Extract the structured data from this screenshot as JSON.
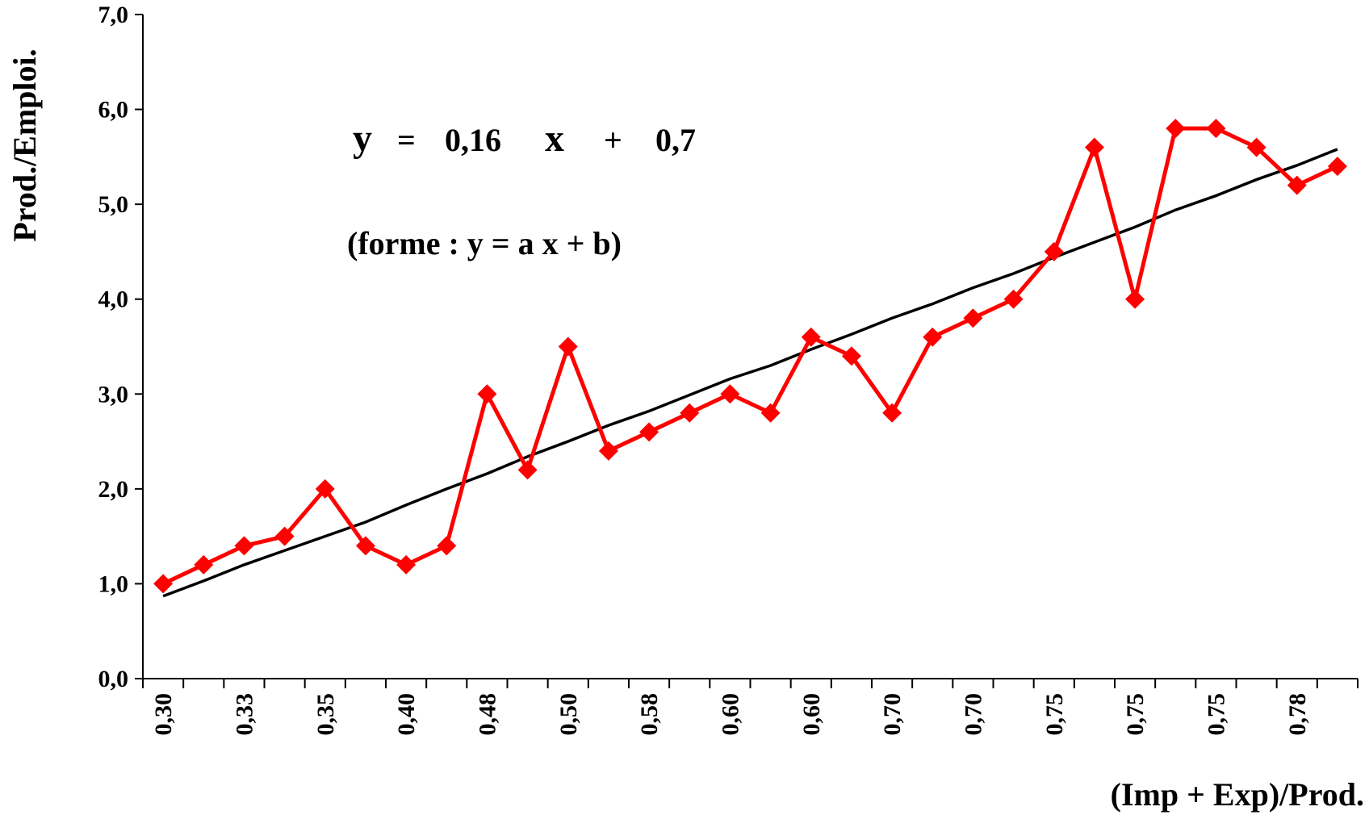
{
  "chart_data": {
    "type": "line",
    "title": "",
    "xlabel": "(Imp + Exp)/Prod.",
    "ylabel": "Prod./Emploi.",
    "ylim": [
      0,
      7
    ],
    "yticks": [
      "0,0",
      "1,0",
      "2,0",
      "3,0",
      "4,0",
      "5,0",
      "6,0",
      "7,0"
    ],
    "grid": false,
    "legend": "none",
    "categories": [
      "0,30",
      "",
      "0,33",
      "",
      "0,35",
      "",
      "0,40",
      "",
      "0,48",
      "",
      "0,50",
      "",
      "0,58",
      "",
      "0,60",
      "",
      "0,60",
      "",
      "0,70",
      "",
      "0,70",
      "",
      "0,75",
      "",
      "0,75",
      "",
      "0,75",
      "",
      "0,78",
      ""
    ],
    "series": [
      {
        "color": "#ff0000",
        "marker": "diamond",
        "values": [
          1.0,
          1.2,
          1.4,
          1.5,
          2.0,
          1.4,
          1.2,
          1.4,
          3.0,
          2.2,
          3.5,
          2.4,
          2.6,
          2.8,
          3.0,
          2.8,
          3.6,
          3.4,
          2.8,
          3.6,
          3.8,
          4.0,
          4.5,
          5.6,
          4.0,
          5.8,
          5.8,
          5.6,
          5.2,
          5.4
        ]
      },
      {
        "color": "#000000",
        "marker": "none",
        "values": [
          0.87,
          1.03,
          1.2,
          1.35,
          1.5,
          1.65,
          1.83,
          2.0,
          2.16,
          2.34,
          2.5,
          2.67,
          2.82,
          2.99,
          3.16,
          3.3,
          3.47,
          3.63,
          3.8,
          3.95,
          4.12,
          4.27,
          4.44,
          4.6,
          4.76,
          4.94,
          5.09,
          5.26,
          5.41,
          5.58
        ]
      }
    ],
    "annotations": {
      "eq_y": "y",
      "eq_equals": "=",
      "eq_coef": "0,16",
      "eq_x": "x",
      "eq_plus": "+",
      "eq_intercept": "0,7",
      "form": "(forme : y = a x + b)"
    }
  }
}
